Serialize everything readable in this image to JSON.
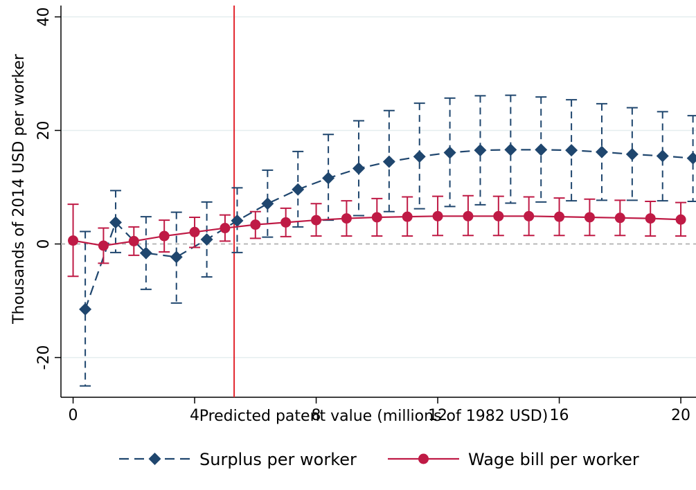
{
  "chart_data": {
    "type": "line",
    "xlabel": "Predicted patent value (millions of 1982 USD)",
    "ylabel": "Thousands of 2014 USD per worker",
    "xlim": [
      -0.4,
      20.5
    ],
    "ylim": [
      -27,
      42
    ],
    "x_ticks": [
      "0",
      "4",
      "8",
      "12",
      "16",
      "20"
    ],
    "y_ticks": [
      "-20",
      "0",
      "20",
      "40"
    ],
    "grid": "horizontal",
    "reference_line_y": 0,
    "vertical_line_x": 5.3,
    "vertical_line_color": "#e2232b",
    "legend_position": "bottom",
    "series": [
      {
        "name": "Surplus per worker",
        "color": "#1f466e",
        "marker": "diamond",
        "line_style": "dashed",
        "x": [
          0.4,
          1.4,
          2.4,
          3.4,
          4.4,
          5.4,
          6.4,
          7.4,
          8.4,
          9.4,
          10.4,
          11.4,
          12.4,
          13.4,
          14.4,
          15.4,
          16.4,
          17.4,
          18.4,
          19.4,
          20.4
        ],
        "y": [
          -11.5,
          3.8,
          -1.6,
          -2.3,
          0.8,
          4.1,
          7.1,
          9.6,
          11.6,
          13.3,
          14.5,
          15.4,
          16.1,
          16.5,
          16.6,
          16.6,
          16.5,
          16.2,
          15.8,
          15.5,
          15.1
        ],
        "ci_low": [
          -25,
          -1.5,
          -8,
          -10.4,
          -5.8,
          -1.5,
          1.2,
          3,
          4.2,
          5,
          5.7,
          6.2,
          6.6,
          6.9,
          7.2,
          7.4,
          7.6,
          7.7,
          7.7,
          7.6,
          7.5
        ],
        "ci_high": [
          2.2,
          9.4,
          4.8,
          5.6,
          7.4,
          9.9,
          13,
          16.3,
          19.3,
          21.7,
          23.5,
          24.8,
          25.7,
          26.1,
          26.2,
          25.9,
          25.4,
          24.7,
          24,
          23.3,
          22.6
        ]
      },
      {
        "name": "Wage bill per worker",
        "color": "#bf1a45",
        "marker": "circle",
        "line_style": "solid",
        "x": [
          0,
          1,
          2,
          3,
          4,
          5,
          6,
          7,
          8,
          9,
          10,
          11,
          12,
          13,
          14,
          15,
          16,
          17,
          18,
          19,
          20
        ],
        "y": [
          0.6,
          -0.3,
          0.5,
          1.4,
          2.1,
          2.8,
          3.4,
          3.8,
          4.2,
          4.5,
          4.7,
          4.8,
          4.9,
          4.9,
          4.9,
          4.9,
          4.8,
          4.7,
          4.6,
          4.5,
          4.3
        ],
        "ci_low": [
          -5.7,
          -3.4,
          -2,
          -1.4,
          -0.6,
          0.5,
          1,
          1.3,
          1.4,
          1.4,
          1.4,
          1.4,
          1.5,
          1.5,
          1.5,
          1.5,
          1.5,
          1.5,
          1.5,
          1.4,
          1.4
        ],
        "ci_high": [
          7,
          2.8,
          3,
          4.2,
          4.7,
          5.1,
          5.7,
          6.3,
          7.1,
          7.6,
          8,
          8.3,
          8.4,
          8.5,
          8.4,
          8.3,
          8.1,
          7.9,
          7.7,
          7.5,
          7.3
        ]
      }
    ]
  }
}
